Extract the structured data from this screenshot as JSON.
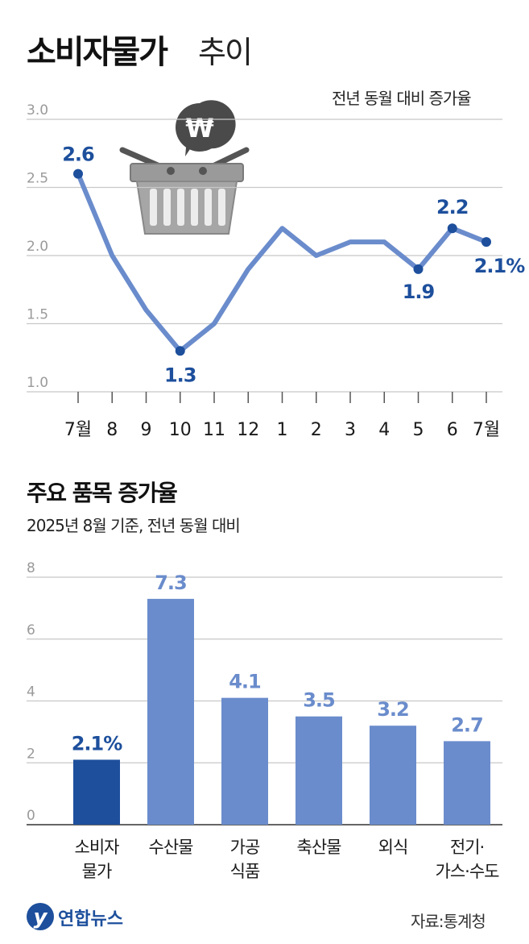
{
  "header": {
    "title": "소비자물가",
    "title_suffix": "추이",
    "note": "전년 동월 대비 증가율"
  },
  "bar_section": {
    "title": "주요 품목 증가율",
    "subtitle": "2025년 8월 기준, 전년 동월 대비"
  },
  "footer": {
    "logo_text": "연합뉴스",
    "source": "자료:통계청"
  },
  "colors": {
    "line": "#6a8ccc",
    "point_label": "#1d4f9c",
    "bar_main": "#1d4f9c",
    "bar_other": "#6a8ccc",
    "grid": "#c8c8c8",
    "axis_label": "#9a9a9a"
  },
  "chart_data": [
    {
      "type": "line",
      "x": [
        "7월",
        "8",
        "9",
        "10",
        "11",
        "12",
        "1",
        "2",
        "3",
        "4",
        "5",
        "6",
        "7월"
      ],
      "values": [
        2.6,
        2.0,
        1.6,
        1.3,
        1.5,
        1.9,
        2.2,
        2.0,
        2.1,
        2.1,
        1.9,
        2.2,
        2.1
      ],
      "ylim": [
        1.0,
        3.0
      ],
      "yticks": [
        "1.0",
        "1.5",
        "2.0",
        "2.5",
        "3.0"
      ],
      "labels": [
        {
          "index": 0,
          "text": "2.6"
        },
        {
          "index": 3,
          "text": "1.3"
        },
        {
          "index": 10,
          "text": "1.9"
        },
        {
          "index": 11,
          "text": "2.2"
        },
        {
          "index": 12,
          "text": "2.1%"
        }
      ],
      "grid": true
    },
    {
      "type": "bar",
      "categories": [
        [
          "소비자",
          "물가"
        ],
        [
          "수산물"
        ],
        [
          "가공",
          "식품"
        ],
        [
          "축산물"
        ],
        [
          "외식"
        ],
        [
          "전기·",
          "가스·수도"
        ]
      ],
      "values": [
        2.1,
        7.3,
        4.1,
        3.5,
        3.2,
        2.7
      ],
      "labels": [
        "2.1%",
        "7.3",
        "4.1",
        "3.5",
        "3.2",
        "2.7"
      ],
      "ylim": [
        0,
        8
      ],
      "yticks": [
        "0",
        "2",
        "4",
        "6",
        "8"
      ],
      "grid": true
    }
  ]
}
